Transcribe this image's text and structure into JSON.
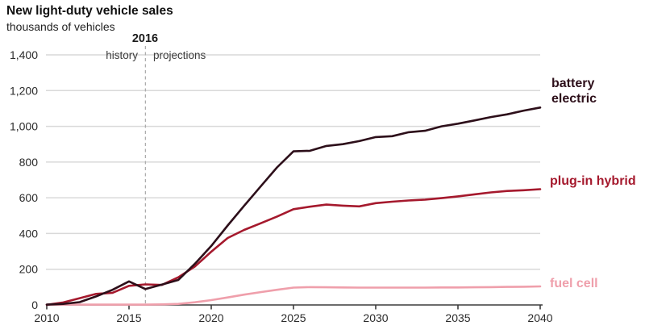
{
  "header": {
    "title": "New light-duty vehicle sales",
    "subtitle": "thousands of vehicles"
  },
  "annotations": {
    "divider_year": "2016",
    "left_label": "history",
    "right_label": "projections"
  },
  "colors": {
    "battery_electric": "#2d0f1a",
    "plug_in_hybrid": "#a5192d",
    "fuel_cell": "#ef9fab",
    "gridline": "#d9d9d9",
    "axis": "#3c3c3c",
    "divider": "#adadad",
    "tick_text": "#2b2b2b"
  },
  "chart_data": {
    "type": "line",
    "title": "New light-duty vehicle sales",
    "ylabel": "thousands of vehicles",
    "xlabel": "",
    "grid": "horizontal",
    "legend_position": "right of line ends",
    "xlim": [
      2010,
      2040
    ],
    "ylim": [
      0,
      1400
    ],
    "x_ticks": [
      2010,
      2015,
      2020,
      2025,
      2030,
      2035,
      2040
    ],
    "y_ticks": [
      0,
      200,
      400,
      600,
      800,
      1000,
      1200,
      1400
    ],
    "y_tick_labels": [
      "0",
      "200",
      "400",
      "600",
      "800",
      "1,000",
      "1,200",
      "1,400"
    ],
    "divider_x": 2016,
    "x": [
      2010,
      2011,
      2012,
      2013,
      2014,
      2015,
      2016,
      2017,
      2018,
      2019,
      2020,
      2021,
      2022,
      2023,
      2024,
      2025,
      2026,
      2027,
      2028,
      2029,
      2030,
      2031,
      2032,
      2033,
      2034,
      2035,
      2036,
      2037,
      2038,
      2039,
      2040
    ],
    "series": [
      {
        "name": "battery electric",
        "color": "#2d0f1a",
        "values": [
          2,
          6,
          16,
          48,
          85,
          132,
          89,
          114,
          140,
          230,
          330,
          445,
          555,
          663,
          770,
          860,
          863,
          890,
          900,
          917,
          940,
          945,
          967,
          975,
          1000,
          1015,
          1033,
          1052,
          1067,
          1088,
          1105
        ]
      },
      {
        "name": "plug-in hybrid",
        "color": "#a5192d",
        "values": [
          1,
          14,
          38,
          62,
          68,
          107,
          115,
          112,
          155,
          215,
          298,
          375,
          420,
          457,
          495,
          536,
          550,
          562,
          556,
          552,
          570,
          578,
          585,
          590,
          598,
          608,
          619,
          630,
          638,
          642,
          648
        ]
      },
      {
        "name": "fuel cell",
        "color": "#ef9fab",
        "values": [
          2,
          2,
          2,
          2,
          2,
          2,
          2,
          3,
          6,
          15,
          27,
          42,
          58,
          72,
          85,
          97,
          100,
          99,
          98,
          97,
          97,
          97,
          97,
          97,
          98,
          98,
          99,
          100,
          101,
          102,
          104
        ]
      }
    ]
  }
}
